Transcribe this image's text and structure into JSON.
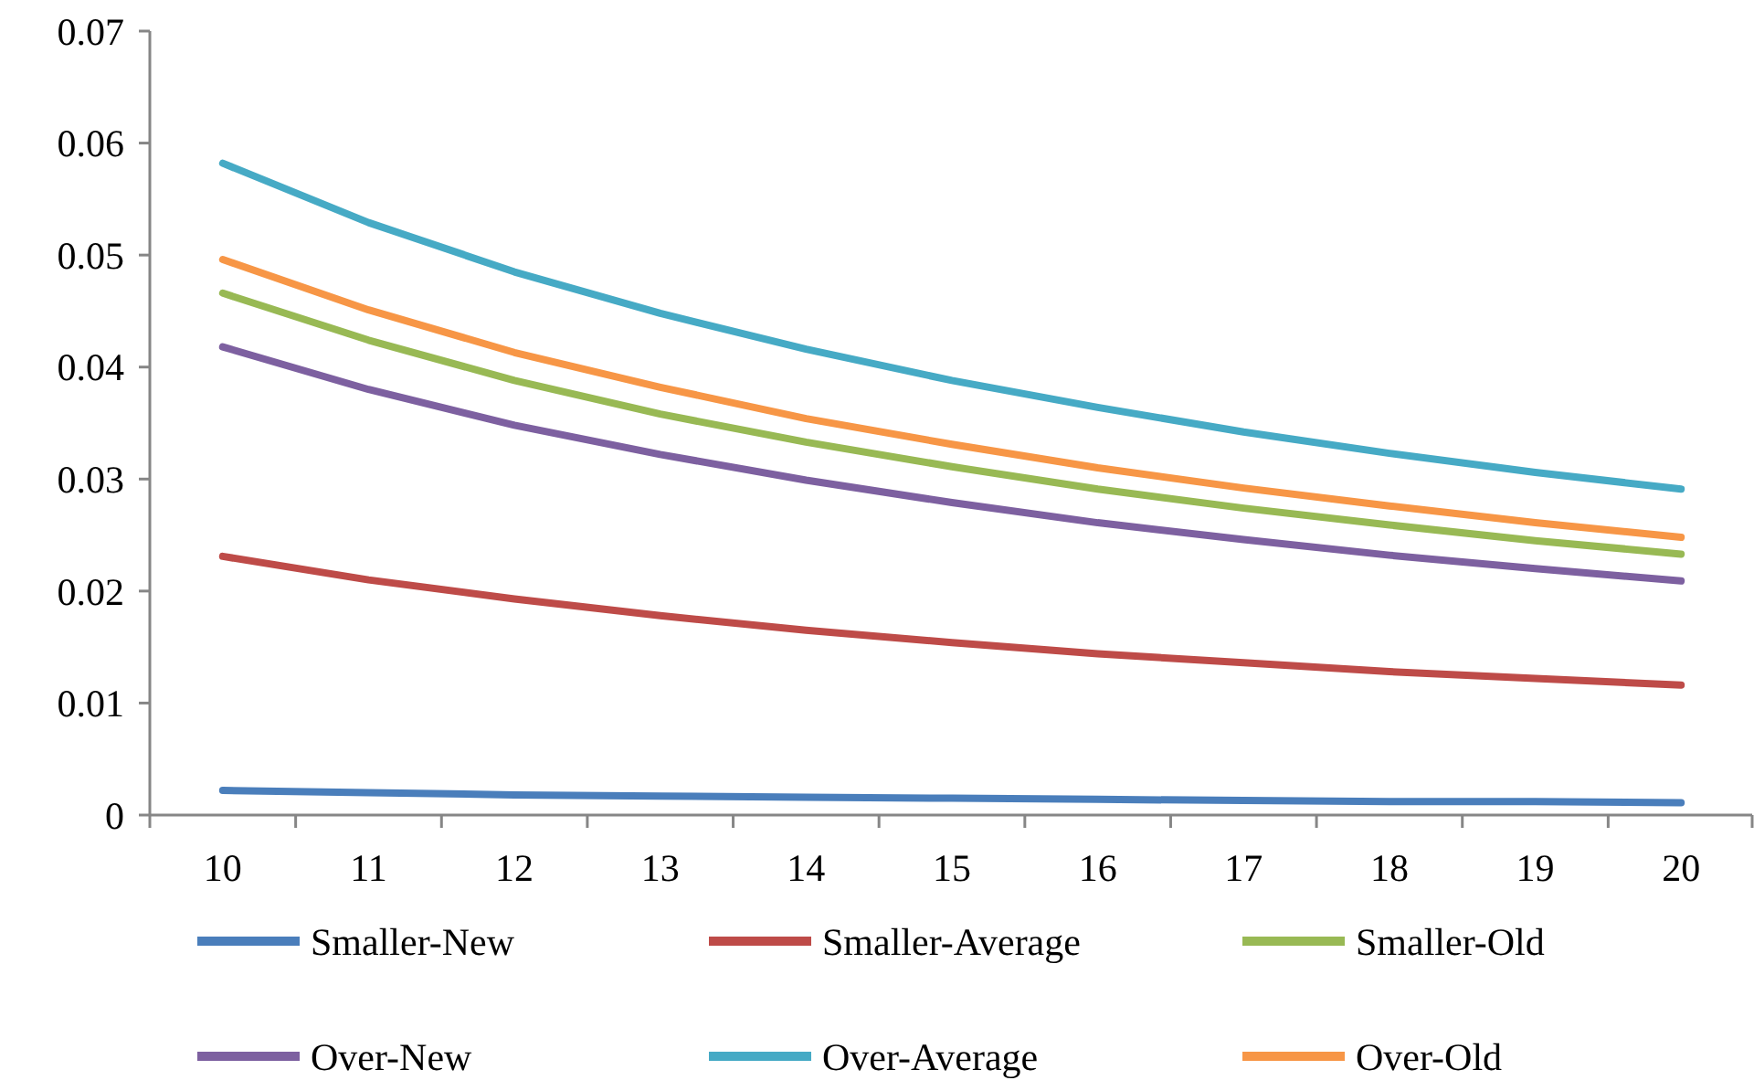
{
  "chart_data": {
    "type": "line",
    "categories": [
      "10",
      "11",
      "12",
      "13",
      "14",
      "15",
      "16",
      "17",
      "18",
      "19",
      "20"
    ],
    "ylim": [
      0,
      0.07
    ],
    "yticks": [
      0,
      0.01,
      0.02,
      0.03,
      0.04,
      0.05,
      0.06,
      0.07
    ],
    "grid": false,
    "legend": "bottom",
    "marker": "none",
    "line_style": "solid",
    "series": [
      {
        "name": "Smaller-New",
        "color": "#4a7ebb",
        "values": [
          0.0022,
          0.002,
          0.0018,
          0.0017,
          0.0016,
          0.0015,
          0.0014,
          0.0013,
          0.0012,
          0.0012,
          0.0011
        ]
      },
      {
        "name": "Smaller-Average",
        "color": "#be4b48",
        "values": [
          0.0231,
          0.021,
          0.0193,
          0.0178,
          0.0165,
          0.0154,
          0.0144,
          0.0136,
          0.0128,
          0.0122,
          0.0116
        ]
      },
      {
        "name": "Smaller-Old",
        "color": "#98b954",
        "values": [
          0.0466,
          0.0424,
          0.0388,
          0.0358,
          0.0333,
          0.0311,
          0.0291,
          0.0274,
          0.0259,
          0.0245,
          0.0233
        ]
      },
      {
        "name": "Over-New",
        "color": "#7d60a0",
        "values": [
          0.0418,
          0.038,
          0.0348,
          0.0322,
          0.0299,
          0.0279,
          0.0261,
          0.0246,
          0.0232,
          0.022,
          0.0209
        ]
      },
      {
        "name": "Over-Average",
        "color": "#46aac5",
        "values": [
          0.0582,
          0.0529,
          0.0485,
          0.0448,
          0.0416,
          0.0388,
          0.0364,
          0.0342,
          0.0323,
          0.0306,
          0.0291
        ]
      },
      {
        "name": "Over-Old",
        "color": "#f79646",
        "values": [
          0.0496,
          0.0451,
          0.0413,
          0.0382,
          0.0354,
          0.0331,
          0.031,
          0.0292,
          0.0276,
          0.0261,
          0.0248
        ]
      }
    ]
  }
}
